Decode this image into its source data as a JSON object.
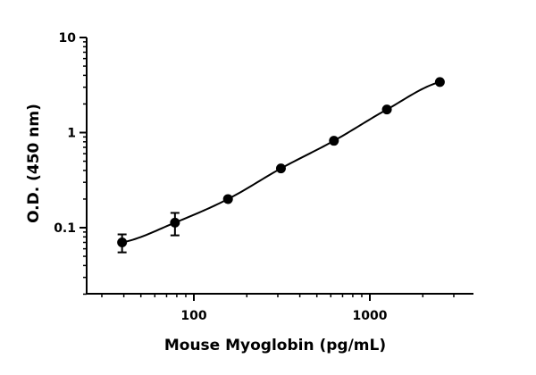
{
  "chart_data": {
    "type": "scatter",
    "xlabel": "Mouse Myoglobin (pg/mL)",
    "ylabel": "O.D. (450 nm)",
    "x_scale": "log",
    "y_scale": "log",
    "xlim": [
      25,
      5000
    ],
    "ylim": [
      0.02,
      10
    ],
    "x_ticks": [
      100,
      1000
    ],
    "x_tick_labels": [
      "100",
      "1000"
    ],
    "y_ticks": [
      0.1,
      1,
      10
    ],
    "y_tick_labels": [
      "0.1",
      "1",
      "10"
    ],
    "grid": false,
    "legend": "none",
    "color": "#000000",
    "series": [
      {
        "x": [
          39.1,
          78.1,
          156.3,
          312.5,
          625,
          1250,
          2500
        ],
        "y": [
          0.07,
          0.113,
          0.2,
          0.42,
          0.82,
          1.75,
          3.4
        ],
        "yerr": [
          0.015,
          0.03,
          0.01,
          0.01,
          0.01,
          0.02,
          0.05
        ],
        "fit": "curve"
      }
    ]
  }
}
